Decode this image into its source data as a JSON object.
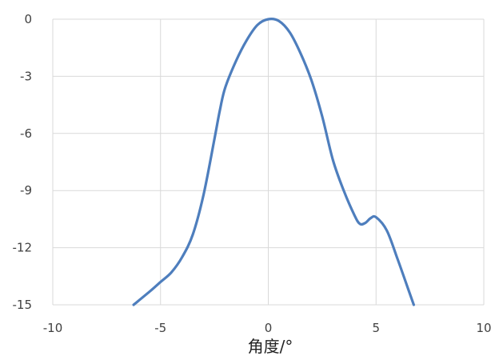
{
  "chart_data": {
    "type": "line",
    "title": "",
    "xlabel": "角度/°",
    "ylabel": "",
    "xlim": [
      -10,
      10
    ],
    "ylim": [
      -15,
      0
    ],
    "x_ticks": [
      -10,
      -5,
      0,
      5,
      10
    ],
    "y_ticks": [
      0,
      -3,
      -6,
      -9,
      -12,
      -15
    ],
    "grid": true,
    "legend": "none",
    "series": [
      {
        "color": "#4E7EBD",
        "points": [
          [
            -6.25,
            -15.0
          ],
          [
            -5.5,
            -14.3
          ],
          [
            -5.0,
            -13.8
          ],
          [
            -4.5,
            -13.3
          ],
          [
            -4.0,
            -12.5
          ],
          [
            -3.5,
            -11.3
          ],
          [
            -3.0,
            -9.2
          ],
          [
            -2.5,
            -6.3
          ],
          [
            -2.25,
            -4.8
          ],
          [
            -2.0,
            -3.6
          ],
          [
            -1.5,
            -2.2
          ],
          [
            -1.0,
            -1.1
          ],
          [
            -0.5,
            -0.3
          ],
          [
            0.0,
            0.0
          ],
          [
            0.5,
            -0.1
          ],
          [
            1.0,
            -0.7
          ],
          [
            1.5,
            -1.8
          ],
          [
            2.0,
            -3.2
          ],
          [
            2.5,
            -5.1
          ],
          [
            3.0,
            -7.4
          ],
          [
            3.5,
            -9.0
          ],
          [
            4.0,
            -10.3
          ],
          [
            4.25,
            -10.75
          ],
          [
            4.5,
            -10.7
          ],
          [
            4.75,
            -10.45
          ],
          [
            5.0,
            -10.4
          ],
          [
            5.5,
            -11.1
          ],
          [
            6.0,
            -12.6
          ],
          [
            6.5,
            -14.2
          ],
          [
            6.75,
            -15.0
          ]
        ]
      }
    ]
  }
}
